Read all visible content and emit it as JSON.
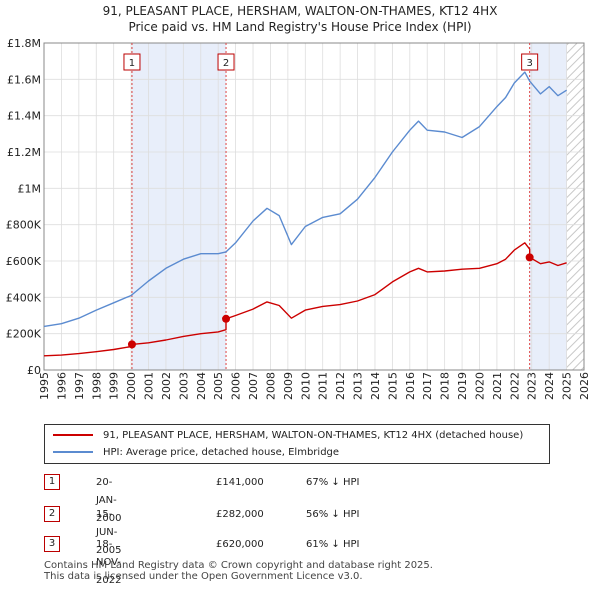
{
  "title_line1": "91, PLEASANT PLACE, HERSHAM, WALTON-ON-THAMES, KT12 4HX",
  "title_line2": "Price paid vs. HM Land Registry's House Price Index (HPI)",
  "colors": {
    "property": "#cc0000",
    "hpi": "#5b8bd0",
    "shade": "#e8eefa",
    "grid": "#dddddd"
  },
  "chart_data": {
    "type": "line",
    "xlim": [
      1995,
      2026
    ],
    "ylim": [
      0,
      1800000
    ],
    "x_ticks": [
      "1995",
      "1996",
      "1997",
      "1998",
      "1999",
      "2000",
      "2001",
      "2002",
      "2003",
      "2004",
      "2005",
      "2006",
      "2007",
      "2008",
      "2009",
      "2010",
      "2011",
      "2012",
      "2013",
      "2014",
      "2015",
      "2016",
      "2017",
      "2018",
      "2019",
      "2020",
      "2021",
      "2022",
      "2023",
      "2024",
      "2025",
      "2026"
    ],
    "y_ticks": [
      {
        "value": 0,
        "label": "£0"
      },
      {
        "value": 200000,
        "label": "£200K"
      },
      {
        "value": 400000,
        "label": "£400K"
      },
      {
        "value": 600000,
        "label": "£600K"
      },
      {
        "value": 800000,
        "label": "£800K"
      },
      {
        "value": 1000000,
        "label": "£1M"
      },
      {
        "value": 1200000,
        "label": "£1.2M"
      },
      {
        "value": 1400000,
        "label": "£1.4M"
      },
      {
        "value": 1600000,
        "label": "£1.6M"
      },
      {
        "value": 1800000,
        "label": "£1.8M"
      }
    ],
    "shaded_ranges": [
      [
        2000.05,
        2005.45
      ],
      [
        2022.88,
        2025.0
      ]
    ],
    "hatched_from": 2025.0,
    "series": [
      {
        "name": "91, PLEASANT PLACE, HERSHAM, WALTON-ON-THAMES, KT12 4HX (detached house)",
        "x": [
          1995,
          1996,
          1997,
          1998,
          1999,
          2000.05,
          2000.05,
          2001,
          2002,
          2003,
          2004,
          2005.0,
          2005.45,
          2005.45,
          2006,
          2007,
          2007.8,
          2008.5,
          2009.2,
          2010,
          2011,
          2012,
          2013,
          2014,
          2015,
          2016,
          2016.5,
          2017,
          2018,
          2019,
          2020,
          2021,
          2021.5,
          2022.0,
          2022.6,
          2022.88,
          2022.88,
          2023.5,
          2024,
          2024.5,
          2025.0
        ],
        "y": [
          78000,
          82000,
          90000,
          101000,
          113000,
          130000,
          141000,
          150000,
          165000,
          185000,
          200000,
          210000,
          222000,
          282000,
          300000,
          335000,
          375000,
          355000,
          285000,
          330000,
          350000,
          360000,
          380000,
          415000,
          485000,
          540000,
          560000,
          540000,
          545000,
          555000,
          560000,
          585000,
          610000,
          660000,
          700000,
          665000,
          620000,
          585000,
          595000,
          575000,
          590000
        ]
      },
      {
        "name": "HPI: Average price, detached house, Elmbridge",
        "x": [
          1995,
          1996,
          1997,
          1998,
          1999,
          2000,
          2001,
          2002,
          2003,
          2004,
          2005,
          2005.45,
          2006,
          2007,
          2007.8,
          2008.5,
          2009.2,
          2010,
          2011,
          2012,
          2013,
          2014,
          2015,
          2016,
          2016.5,
          2017,
          2018,
          2019,
          2020,
          2021,
          2021.5,
          2022.0,
          2022.6,
          2022.88,
          2023.5,
          2024,
          2024.5,
          2025.0
        ],
        "y": [
          240000,
          255000,
          285000,
          330000,
          370000,
          410000,
          490000,
          560000,
          610000,
          640000,
          640000,
          650000,
          700000,
          820000,
          890000,
          850000,
          690000,
          790000,
          840000,
          860000,
          940000,
          1060000,
          1200000,
          1320000,
          1370000,
          1320000,
          1310000,
          1280000,
          1340000,
          1450000,
          1500000,
          1580000,
          1640000,
          1590000,
          1520000,
          1560000,
          1510000,
          1540000
        ]
      }
    ],
    "sales": [
      {
        "num": "1",
        "x": 2000.05,
        "y": 141000
      },
      {
        "num": "2",
        "x": 2005.45,
        "y": 282000
      },
      {
        "num": "3",
        "x": 2022.88,
        "y": 620000
      }
    ]
  },
  "legend": {
    "property": "91, PLEASANT PLACE, HERSHAM, WALTON-ON-THAMES, KT12 4HX (detached house)",
    "hpi": "HPI: Average price, detached house, Elmbridge"
  },
  "transactions": [
    {
      "num": "1",
      "date": "20-JAN-2000",
      "price": "£141,000",
      "hpi": "67% ↓ HPI"
    },
    {
      "num": "2",
      "date": "15-JUN-2005",
      "price": "£282,000",
      "hpi": "56% ↓ HPI"
    },
    {
      "num": "3",
      "date": "18-NOV-2022",
      "price": "£620,000",
      "hpi": "61% ↓ HPI"
    }
  ],
  "footer_line1": "Contains HM Land Registry data © Crown copyright and database right 2025.",
  "footer_line2": "This data is licensed under the Open Government Licence v3.0."
}
